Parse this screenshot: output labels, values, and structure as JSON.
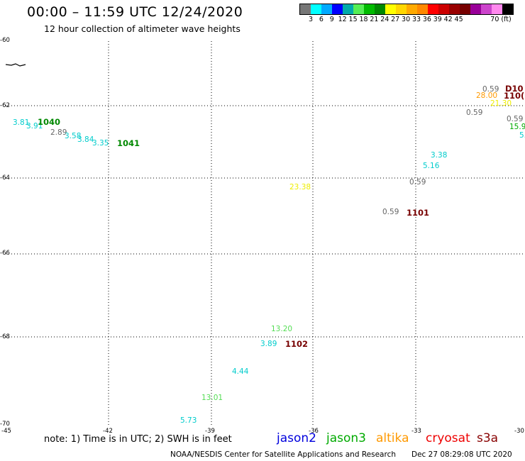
{
  "header": {
    "title": "00:00 – 11:59 UTC 12/24/2020",
    "subtitle": "12 hour collection of altimeter wave heights"
  },
  "legend": {
    "unit": "70 (ft)",
    "colors": [
      "#777777",
      "#00ffff",
      "#00aaff",
      "#0000ff",
      "#00aaaa",
      "#55ee55",
      "#00bb00",
      "#008800",
      "#ffff00",
      "#ffd700",
      "#ffaa00",
      "#ff8800",
      "#ff0000",
      "#cc0000",
      "#990000",
      "#770000",
      "#990099",
      "#cc44cc",
      "#ff88ee",
      "#000000"
    ],
    "labels": [
      "3",
      "6",
      "9",
      "12",
      "15",
      "18",
      "21",
      "24",
      "27",
      "30",
      "33",
      "36",
      "39",
      "42",
      "45"
    ]
  },
  "map": {
    "lon_ticks": [
      "-45",
      "-42",
      "-39",
      "-36",
      "-33",
      "-30"
    ],
    "lat_ticks": [
      "-60",
      "-62",
      "-64",
      "-66",
      "-68",
      "-70"
    ],
    "observations": [
      {
        "text": "3.81",
        "color": "#00cccc"
      },
      {
        "text": "3.91",
        "color": "#00cccc"
      },
      {
        "text": "2.89",
        "color": "#666666"
      },
      {
        "text": "3.58",
        "color": "#00cccc"
      },
      {
        "text": "3.84",
        "color": "#00cccc"
      },
      {
        "text": "3.35",
        "color": "#00cccc"
      },
      {
        "text": "0.59",
        "color": "#666666"
      },
      {
        "text": "28.00",
        "color": "#ff9900"
      },
      {
        "text": "21.30",
        "color": "#eeee00"
      },
      {
        "text": "0.59",
        "color": "#666666"
      },
      {
        "text": "0.59",
        "color": "#666666"
      },
      {
        "text": "15.9",
        "color": "#00aa00"
      },
      {
        "text": "5.",
        "color": "#00cccc"
      },
      {
        "text": "3.38",
        "color": "#00cccc"
      },
      {
        "text": "5.16",
        "color": "#00cccc"
      },
      {
        "text": "0.59",
        "color": "#666666"
      },
      {
        "text": "23.38",
        "color": "#eeee00"
      },
      {
        "text": "0.59",
        "color": "#666666"
      },
      {
        "text": "13.20",
        "color": "#55dd55"
      },
      {
        "text": "3.89",
        "color": "#00cccc"
      },
      {
        "text": "4.44",
        "color": "#00cccc"
      },
      {
        "text": "13.01",
        "color": "#55dd55"
      },
      {
        "text": "5.73",
        "color": "#00cccc"
      }
    ],
    "buoys": [
      {
        "text": "1040",
        "color": "#008800"
      },
      {
        "text": "1041",
        "color": "#008800"
      },
      {
        "text": "D10",
        "color": "#770000"
      },
      {
        "text": "110(",
        "color": "#770000"
      },
      {
        "text": "1101",
        "color": "#770000"
      },
      {
        "text": "1102",
        "color": "#770000"
      }
    ]
  },
  "footer": {
    "note": "note: 1) Time is in UTC; 2) SWH is in feet",
    "satellites": [
      {
        "name": "jason2",
        "color": "#0000dd"
      },
      {
        "name": "jason3",
        "color": "#00aa00"
      },
      {
        "name": "altika",
        "color": "#ff9900"
      },
      {
        "name": "cryosat",
        "color": "#ee0000"
      },
      {
        "name": "s3a",
        "color": "#880000"
      }
    ],
    "credit": "NOAA/NESDIS Center for Satellite Applications and Research",
    "timestamp": "Dec 27 08:29:08 UTC 2020"
  }
}
